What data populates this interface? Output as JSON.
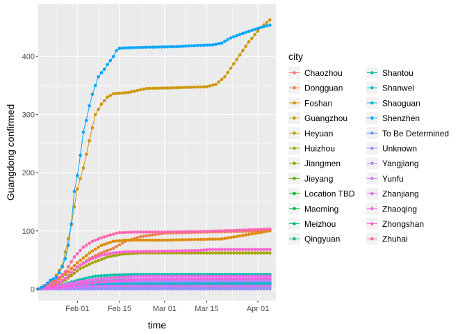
{
  "chart_data": {
    "type": "line",
    "markers": "points",
    "xlabel": "time",
    "ylabel": "Guangdong  confirmed",
    "x_range": [
      "2020-01-19",
      "2020-04-07"
    ],
    "ylim": [
      -20,
      490
    ],
    "x_ticks": [
      {
        "date": "2020-02-01",
        "label": "Feb 01"
      },
      {
        "date": "2020-02-15",
        "label": "Feb 15"
      },
      {
        "date": "2020-03-01",
        "label": "Mar 01"
      },
      {
        "date": "2020-03-15",
        "label": "Mar 15"
      },
      {
        "date": "2020-04-01",
        "label": "Apr 01"
      }
    ],
    "y_ticks": [
      0,
      100,
      200,
      300,
      400
    ],
    "grid": true,
    "legend": {
      "title": "city",
      "position": "right",
      "columns": 2
    },
    "series": [
      {
        "name": "Chaozhou",
        "color": "#F8766D",
        "points": [
          [
            "2020-01-19",
            0
          ],
          [
            "2020-01-26",
            2
          ],
          [
            "2020-02-02",
            4
          ],
          [
            "2020-02-10",
            5
          ],
          [
            "2020-02-20",
            6
          ],
          [
            "2020-04-05",
            6
          ]
        ]
      },
      {
        "name": "Dongguan",
        "color": "#EE8044",
        "points": [
          [
            "2020-01-19",
            0
          ],
          [
            "2020-01-24",
            4
          ],
          [
            "2020-01-28",
            18
          ],
          [
            "2020-02-01",
            38
          ],
          [
            "2020-02-05",
            52
          ],
          [
            "2020-02-09",
            62
          ],
          [
            "2020-02-13",
            70
          ],
          [
            "2020-02-17",
            82
          ],
          [
            "2020-02-22",
            90
          ],
          [
            "2020-03-01",
            96
          ],
          [
            "2020-03-15",
            98
          ],
          [
            "2020-04-05",
            100
          ]
        ]
      },
      {
        "name": "Foshan",
        "color": "#DE8C00",
        "points": [
          [
            "2020-01-19",
            0
          ],
          [
            "2020-01-23",
            5
          ],
          [
            "2020-01-28",
            25
          ],
          [
            "2020-02-01",
            45
          ],
          [
            "2020-02-05",
            62
          ],
          [
            "2020-02-09",
            75
          ],
          [
            "2020-02-13",
            82
          ],
          [
            "2020-02-17",
            84
          ],
          [
            "2020-03-01",
            84
          ],
          [
            "2020-03-20",
            86
          ],
          [
            "2020-04-05",
            100
          ]
        ]
      },
      {
        "name": "Guangzhou",
        "color": "#CD9600",
        "points": [
          [
            "2020-01-19",
            0
          ],
          [
            "2020-01-24",
            15
          ],
          [
            "2020-01-27",
            40
          ],
          [
            "2020-01-30",
            110
          ],
          [
            "2020-02-01",
            172
          ],
          [
            "2020-02-03",
            208
          ],
          [
            "2020-02-05",
            255
          ],
          [
            "2020-02-07",
            300
          ],
          [
            "2020-02-09",
            318
          ],
          [
            "2020-02-11",
            330
          ],
          [
            "2020-02-13",
            336
          ],
          [
            "2020-02-18",
            338
          ],
          [
            "2020-02-24",
            345
          ],
          [
            "2020-03-04",
            346
          ],
          [
            "2020-03-15",
            348
          ],
          [
            "2020-03-18",
            352
          ],
          [
            "2020-03-21",
            365
          ],
          [
            "2020-03-25",
            395
          ],
          [
            "2020-03-29",
            425
          ],
          [
            "2020-04-02",
            450
          ],
          [
            "2020-04-05",
            463
          ]
        ]
      },
      {
        "name": "Heyuan",
        "color": "#B9A000",
        "points": [
          [
            "2020-01-19",
            0
          ],
          [
            "2020-01-27",
            2
          ],
          [
            "2020-02-03",
            3
          ],
          [
            "2020-02-10",
            4
          ],
          [
            "2020-04-05",
            4
          ]
        ]
      },
      {
        "name": "Huizhou",
        "color": "#A3A500",
        "points": [
          [
            "2020-01-19",
            0
          ],
          [
            "2020-01-24",
            6
          ],
          [
            "2020-01-28",
            15
          ],
          [
            "2020-02-02",
            35
          ],
          [
            "2020-02-06",
            45
          ],
          [
            "2020-02-11",
            55
          ],
          [
            "2020-02-16",
            60
          ],
          [
            "2020-02-22",
            62
          ],
          [
            "2020-04-05",
            62
          ]
        ]
      },
      {
        "name": "Jiangmen",
        "color": "#86AC00",
        "points": [
          [
            "2020-01-19",
            0
          ],
          [
            "2020-01-26",
            4
          ],
          [
            "2020-02-02",
            12
          ],
          [
            "2020-02-09",
            18
          ],
          [
            "2020-02-16",
            21
          ],
          [
            "2020-02-22",
            22
          ],
          [
            "2020-04-05",
            23
          ]
        ]
      },
      {
        "name": "Jieyang",
        "color": "#5BB300",
        "points": [
          [
            "2020-01-19",
            0
          ],
          [
            "2020-01-27",
            2
          ],
          [
            "2020-02-03",
            6
          ],
          [
            "2020-02-10",
            8
          ],
          [
            "2020-02-17",
            8
          ],
          [
            "2020-04-05",
            8
          ]
        ]
      },
      {
        "name": "Location TBD",
        "color": "#00B824",
        "points": [
          [
            "2020-01-19",
            0
          ],
          [
            "2020-02-15",
            1
          ],
          [
            "2020-04-05",
            1
          ]
        ]
      },
      {
        "name": "Maoming",
        "color": "#00BB4E",
        "points": [
          [
            "2020-01-19",
            0
          ],
          [
            "2020-01-26",
            2
          ],
          [
            "2020-02-02",
            5
          ],
          [
            "2020-02-09",
            8
          ],
          [
            "2020-02-16",
            9
          ],
          [
            "2020-04-05",
            10
          ]
        ]
      },
      {
        "name": "Meizhou",
        "color": "#00BE70",
        "points": [
          [
            "2020-01-19",
            0
          ],
          [
            "2020-01-27",
            3
          ],
          [
            "2020-02-03",
            10
          ],
          [
            "2020-02-10",
            14
          ],
          [
            "2020-02-17",
            16
          ],
          [
            "2020-04-05",
            17
          ]
        ]
      },
      {
        "name": "Qingyuan",
        "color": "#00BF8C",
        "points": [
          [
            "2020-01-19",
            0
          ],
          [
            "2020-01-26",
            3
          ],
          [
            "2020-02-02",
            8
          ],
          [
            "2020-02-09",
            10
          ],
          [
            "2020-02-16",
            12
          ],
          [
            "2020-04-05",
            12
          ]
        ]
      },
      {
        "name": "Shantou",
        "color": "#00C0A6",
        "points": [
          [
            "2020-01-19",
            0
          ],
          [
            "2020-01-25",
            4
          ],
          [
            "2020-02-01",
            15
          ],
          [
            "2020-02-07",
            22
          ],
          [
            "2020-02-13",
            24
          ],
          [
            "2020-02-20",
            25
          ],
          [
            "2020-04-05",
            25
          ]
        ]
      },
      {
        "name": "Shanwei",
        "color": "#00BFBE",
        "points": [
          [
            "2020-01-19",
            0
          ],
          [
            "2020-01-27",
            2
          ],
          [
            "2020-02-03",
            4
          ],
          [
            "2020-02-10",
            5
          ],
          [
            "2020-04-05",
            5
          ]
        ]
      },
      {
        "name": "Shaoguan",
        "color": "#00BBD8",
        "points": [
          [
            "2020-01-19",
            0
          ],
          [
            "2020-01-26",
            2
          ],
          [
            "2020-02-02",
            6
          ],
          [
            "2020-02-09",
            9
          ],
          [
            "2020-02-16",
            10
          ],
          [
            "2020-04-05",
            10
          ]
        ]
      },
      {
        "name": "Shenzhen",
        "color": "#00A5FF",
        "points": [
          [
            "2020-01-19",
            0
          ],
          [
            "2020-01-21",
            5
          ],
          [
            "2020-01-22",
            10
          ],
          [
            "2020-01-23",
            15
          ],
          [
            "2020-01-25",
            20
          ],
          [
            "2020-01-26",
            28
          ],
          [
            "2020-01-27",
            38
          ],
          [
            "2020-01-28",
            52
          ],
          [
            "2020-01-29",
            75
          ],
          [
            "2020-01-30",
            112
          ],
          [
            "2020-01-31",
            168
          ],
          [
            "2020-02-01",
            195
          ],
          [
            "2020-02-02",
            230
          ],
          [
            "2020-02-03",
            270
          ],
          [
            "2020-02-04",
            290
          ],
          [
            "2020-02-05",
            315
          ],
          [
            "2020-02-06",
            335
          ],
          [
            "2020-02-07",
            350
          ],
          [
            "2020-02-08",
            365
          ],
          [
            "2020-02-09",
            372
          ],
          [
            "2020-02-10",
            378
          ],
          [
            "2020-02-11",
            386
          ],
          [
            "2020-02-12",
            393
          ],
          [
            "2020-02-13",
            400
          ],
          [
            "2020-02-14",
            410
          ],
          [
            "2020-02-15",
            414
          ],
          [
            "2020-02-18",
            415
          ],
          [
            "2020-02-25",
            416
          ],
          [
            "2020-03-05",
            417
          ],
          [
            "2020-03-12",
            419
          ],
          [
            "2020-03-17",
            420
          ],
          [
            "2020-03-20",
            423
          ],
          [
            "2020-03-23",
            432
          ],
          [
            "2020-03-26",
            438
          ],
          [
            "2020-03-30",
            445
          ],
          [
            "2020-04-02",
            450
          ],
          [
            "2020-04-05",
            454
          ]
        ]
      },
      {
        "name": "To Be Determined",
        "color": "#619CFF",
        "points": [
          [
            "2020-01-19",
            0
          ],
          [
            "2020-02-10",
            1
          ],
          [
            "2020-04-05",
            1
          ]
        ]
      },
      {
        "name": "Unknown",
        "color": "#9590FF",
        "points": [
          [
            "2020-01-19",
            0
          ],
          [
            "2020-04-05",
            0
          ]
        ]
      },
      {
        "name": "Yangjiang",
        "color": "#B983FF",
        "points": [
          [
            "2020-01-19",
            0
          ],
          [
            "2020-01-26",
            2
          ],
          [
            "2020-02-02",
            8
          ],
          [
            "2020-02-09",
            12
          ],
          [
            "2020-02-16",
            13
          ],
          [
            "2020-04-05",
            14
          ]
        ]
      },
      {
        "name": "Yunfu",
        "color": "#D575FE",
        "points": [
          [
            "2020-01-19",
            0
          ],
          [
            "2020-01-28",
            2
          ],
          [
            "2020-02-05",
            4
          ],
          [
            "2020-02-12",
            5
          ],
          [
            "2020-04-05",
            5
          ]
        ]
      },
      {
        "name": "Zhanjiang",
        "color": "#E76BF3",
        "points": [
          [
            "2020-01-19",
            0
          ],
          [
            "2020-01-25",
            4
          ],
          [
            "2020-02-01",
            12
          ],
          [
            "2020-02-08",
            17
          ],
          [
            "2020-02-15",
            20
          ],
          [
            "2020-02-22",
            22
          ],
          [
            "2020-04-05",
            22
          ]
        ]
      },
      {
        "name": "Zhaoqing",
        "color": "#F563E3",
        "points": [
          [
            "2020-01-19",
            0
          ],
          [
            "2020-01-26",
            3
          ],
          [
            "2020-02-02",
            8
          ],
          [
            "2020-02-09",
            12
          ],
          [
            "2020-02-16",
            15
          ],
          [
            "2020-02-24",
            17
          ],
          [
            "2020-04-05",
            18
          ]
        ]
      },
      {
        "name": "Zhongshan",
        "color": "#FE61CF",
        "points": [
          [
            "2020-01-19",
            0
          ],
          [
            "2020-01-24",
            5
          ],
          [
            "2020-01-28",
            18
          ],
          [
            "2020-02-01",
            38
          ],
          [
            "2020-02-05",
            50
          ],
          [
            "2020-02-09",
            58
          ],
          [
            "2020-02-13",
            62
          ],
          [
            "2020-02-17",
            64
          ],
          [
            "2020-03-12",
            66
          ],
          [
            "2020-03-16",
            68
          ],
          [
            "2020-04-05",
            68
          ]
        ]
      },
      {
        "name": "Zhuhai",
        "color": "#FF65AE",
        "points": [
          [
            "2020-01-19",
            0
          ],
          [
            "2020-01-22",
            5
          ],
          [
            "2020-01-25",
            15
          ],
          [
            "2020-01-28",
            30
          ],
          [
            "2020-01-31",
            55
          ],
          [
            "2020-02-03",
            72
          ],
          [
            "2020-02-06",
            82
          ],
          [
            "2020-02-09",
            88
          ],
          [
            "2020-02-12",
            93
          ],
          [
            "2020-02-15",
            97
          ],
          [
            "2020-02-20",
            98
          ],
          [
            "2020-03-01",
            98
          ],
          [
            "2020-03-15",
            99
          ],
          [
            "2020-03-25",
            101
          ],
          [
            "2020-04-05",
            103
          ]
        ]
      }
    ]
  }
}
